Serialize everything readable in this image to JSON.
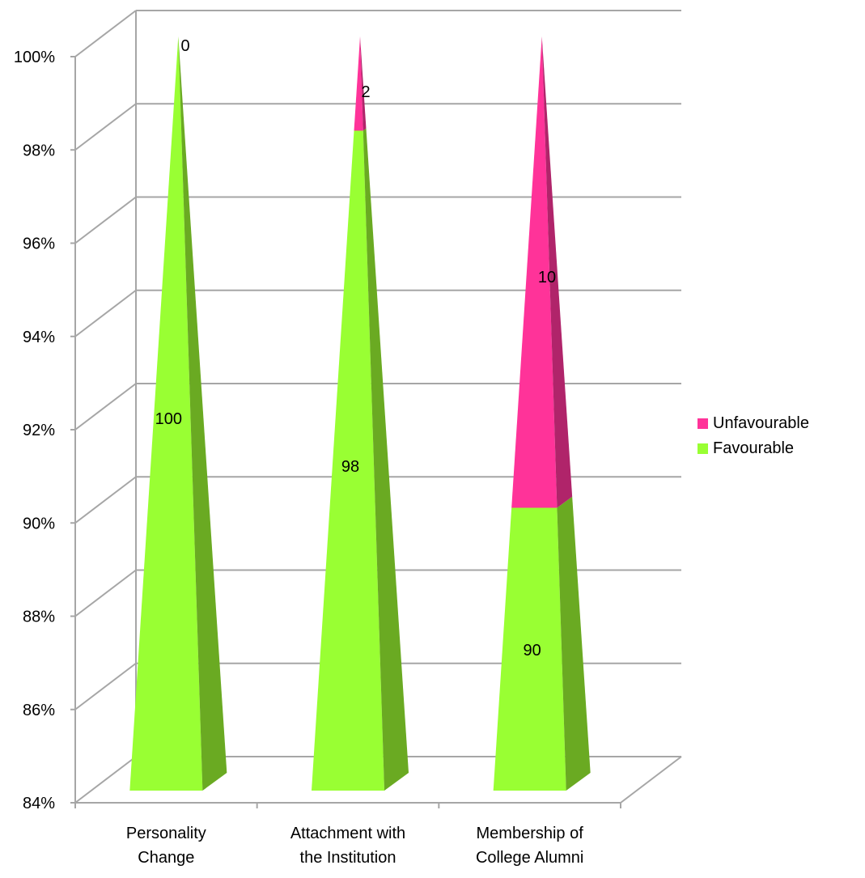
{
  "chart_data": {
    "type": "bar",
    "style": "3D stacked 100% pyramid",
    "categories": [
      "Personality\nChange",
      "Attachment with\nthe Institution",
      "Membership of\nCollege Alumni"
    ],
    "series": [
      {
        "name": "Favourable",
        "values": [
          100,
          98,
          90
        ],
        "color": "#99ff33"
      },
      {
        "name": "Unfavourable",
        "values": [
          0,
          2,
          10
        ],
        "color": "#ff3399"
      }
    ],
    "y_ticks": [
      "84%",
      "86%",
      "88%",
      "90%",
      "92%",
      "94%",
      "96%",
      "98%",
      "100%"
    ],
    "ylim": [
      84,
      100
    ],
    "grid": true,
    "legend_position": "right"
  }
}
